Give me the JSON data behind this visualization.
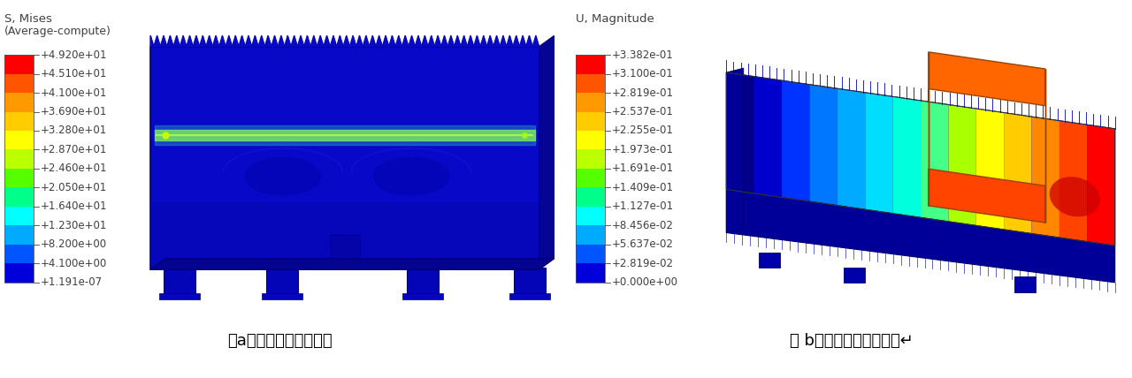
{
  "left_panel": {
    "title_line1": "S, Mises",
    "title_line2": "(Average-compute)",
    "colorbar_labels": [
      "+4.920e+01",
      "+4.510e+01",
      "+4.100e+01",
      "+3.690e+01",
      "+3.280e+01",
      "+2.870e+01",
      "+2.460e+01",
      "+2.050e+01",
      "+1.640e+01",
      "+1.230e+01",
      "+8.200e+00",
      "+4.100e+00",
      "+1.191e-07"
    ],
    "colorbar_colors": [
      "#FF0000",
      "#FF5500",
      "#FF9900",
      "#FFCC00",
      "#FFFF00",
      "#BBFF00",
      "#55FF00",
      "#00FF88",
      "#00FFFF",
      "#00AAFF",
      "#0055FF",
      "#0000DD",
      "#00008B"
    ],
    "caption": "（a）梯级等效应力云图"
  },
  "right_panel": {
    "title_line1": "U, Magnitude",
    "colorbar_labels": [
      "+3.382e-01",
      "+3.100e-01",
      "+2.819e-01",
      "+2.537e-01",
      "+2.255e-01",
      "+1.973e-01",
      "+1.691e-01",
      "+1.409e-01",
      "+1.127e-01",
      "+8.456e-02",
      "+5.637e-02",
      "+2.819e-02",
      "+0.000e+00"
    ],
    "colorbar_colors": [
      "#FF0000",
      "#FF5500",
      "#FF9900",
      "#FFCC00",
      "#FFFF00",
      "#BBFF00",
      "#55FF00",
      "#00FF88",
      "#00FFFF",
      "#00AAFF",
      "#0055FF",
      "#0000DD",
      "#00008B"
    ],
    "caption": "（ b）梯级等效位移云图↵"
  },
  "bg_color": "#FFFFFF",
  "text_color": "#404040",
  "label_fontsize": 8.5,
  "title_fontsize": 9.5,
  "caption_fontsize": 13
}
